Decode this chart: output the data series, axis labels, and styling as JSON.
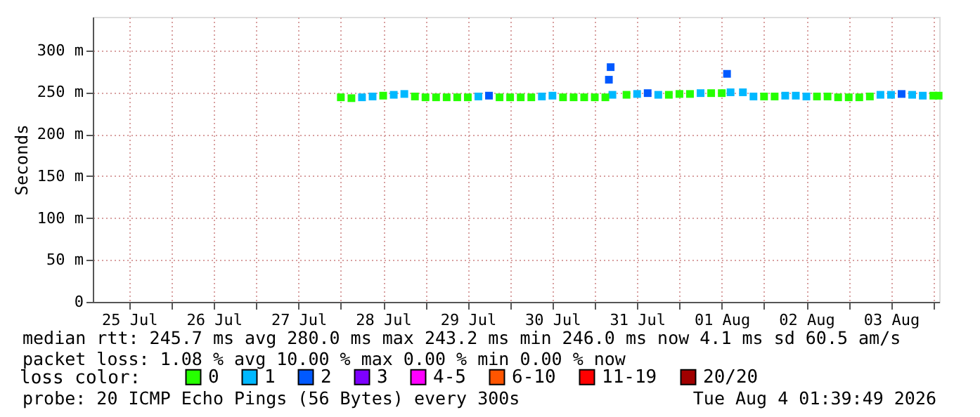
{
  "chart_data": {
    "type": "scatter",
    "ylabel": "Seconds",
    "legend_title": "loss color:",
    "legend": "bottom left",
    "grid": true,
    "marker": "square",
    "xlim": [
      "2026-07-25T01:40",
      "2026-08-04T01:40"
    ],
    "xticks": [
      {
        "value": "2026-07-25T12:00",
        "label": "25 Jul"
      },
      {
        "value": "2026-07-26T00:00",
        "label": null
      },
      {
        "value": "2026-07-26T12:00",
        "label": "26 Jul"
      },
      {
        "value": "2026-07-27T00:00",
        "label": null
      },
      {
        "value": "2026-07-27T12:00",
        "label": "27 Jul"
      },
      {
        "value": "2026-07-28T00:00",
        "label": null
      },
      {
        "value": "2026-07-28T12:00",
        "label": "28 Jul"
      },
      {
        "value": "2026-07-29T00:00",
        "label": null
      },
      {
        "value": "2026-07-29T12:00",
        "label": "29 Jul"
      },
      {
        "value": "2026-07-30T00:00",
        "label": null
      },
      {
        "value": "2026-07-30T12:00",
        "label": "30 Jul"
      },
      {
        "value": "2026-07-31T00:00",
        "label": null
      },
      {
        "value": "2026-07-31T12:00",
        "label": "31 Jul"
      },
      {
        "value": "2026-08-01T00:00",
        "label": null
      },
      {
        "value": "2026-08-01T12:00",
        "label": "01 Aug"
      },
      {
        "value": "2026-08-02T00:00",
        "label": null
      },
      {
        "value": "2026-08-02T12:00",
        "label": "02 Aug"
      },
      {
        "value": "2026-08-03T00:00",
        "label": null
      },
      {
        "value": "2026-08-03T12:00",
        "label": "03 Aug"
      },
      {
        "value": "2026-08-04T00:00",
        "label": null
      }
    ],
    "ylim": [
      0,
      340
    ],
    "yticks": [
      0,
      {
        "value": 50,
        "label": "50 m"
      },
      {
        "value": 100,
        "label": "100 m"
      },
      {
        "value": 150,
        "label": "150 m"
      },
      {
        "value": 200,
        "label": "200 m"
      },
      {
        "value": 250,
        "label": "250 m"
      },
      {
        "value": 300,
        "label": "300 m"
      }
    ],
    "series": [
      {
        "name": "0",
        "color": "#26ff00",
        "x": [
          "2026-07-28T00:00",
          "2026-07-28T03:00",
          "2026-07-28T12:00",
          "2026-07-28T21:00",
          "2026-07-29T00:00",
          "2026-07-29T03:00",
          "2026-07-29T06:00",
          "2026-07-29T09:00",
          "2026-07-29T12:00",
          "2026-07-29T21:00",
          "2026-07-30T00:00",
          "2026-07-30T03:00",
          "2026-07-30T06:00",
          "2026-07-30T15:00",
          "2026-07-30T18:00",
          "2026-07-30T21:00",
          "2026-07-31T00:00",
          "2026-07-31T03:00",
          "2026-07-31T09:00",
          "2026-07-31T21:00",
          "2026-08-01T00:00",
          "2026-08-01T03:00",
          "2026-08-01T09:00",
          "2026-08-01T12:00",
          "2026-08-02T00:00",
          "2026-08-02T03:00",
          "2026-08-02T15:00",
          "2026-08-02T18:00",
          "2026-08-02T21:00",
          "2026-08-03T00:00",
          "2026-08-03T03:00",
          "2026-08-03T06:00",
          "2026-08-04T00:00",
          "2026-08-04T01:30"
        ],
        "values": [
          244,
          243,
          246,
          245,
          244,
          244,
          244,
          244,
          244,
          244,
          244,
          244,
          244,
          244,
          244,
          244,
          244,
          244,
          247,
          247,
          248,
          248,
          249,
          249,
          245,
          245,
          245,
          245,
          244,
          244,
          244,
          245,
          246,
          246
        ]
      },
      {
        "name": "1",
        "color": "#00b8ff",
        "x": [
          "2026-07-28T06:00",
          "2026-07-28T09:00",
          "2026-07-28T15:00",
          "2026-07-28T18:00",
          "2026-07-29T15:00",
          "2026-07-30T09:00",
          "2026-07-30T12:00",
          "2026-07-31T05:00",
          "2026-07-31T12:00",
          "2026-07-31T18:00",
          "2026-08-01T06:00",
          "2026-08-01T14:30",
          "2026-08-01T18:00",
          "2026-08-01T21:00",
          "2026-08-02T06:00",
          "2026-08-02T09:00",
          "2026-08-02T12:00",
          "2026-08-03T09:00",
          "2026-08-03T12:00",
          "2026-08-03T18:00",
          "2026-08-03T21:00"
        ],
        "values": [
          244,
          245,
          247,
          248,
          245,
          245,
          246,
          247,
          248,
          247,
          249,
          250,
          250,
          245,
          246,
          246,
          245,
          247,
          247,
          247,
          246
        ]
      },
      {
        "name": "2",
        "color": "#0059ff",
        "x": [
          "2026-07-29T18:00",
          "2026-07-31T04:00",
          "2026-07-31T04:30",
          "2026-07-31T15:00",
          "2026-08-01T13:30",
          "2026-08-03T15:00"
        ],
        "values": [
          246,
          265,
          280,
          249,
          272,
          248
        ]
      },
      {
        "name": "3",
        "color": "#7e00ff"
      },
      {
        "name": "4-5",
        "color": "#ff00ff"
      },
      {
        "name": "6-10",
        "color": "#ff5500"
      },
      {
        "name": "11-19",
        "color": "#ff0000"
      },
      {
        "name": "20/20",
        "color": "#a10000"
      }
    ],
    "annotations": [
      "median rtt:  245.7 ms avg  280.0 ms max  243.2 ms min  246.0 ms now  4.1 ms sd  60.5   am/s",
      "packet loss: 1.08 % avg  10.00 % max  0.00 % min  0.00 % now",
      "probe:        20 ICMP Echo Pings (56 Bytes) every 300s",
      "Tue Aug  4 01:39:49 2026"
    ]
  }
}
